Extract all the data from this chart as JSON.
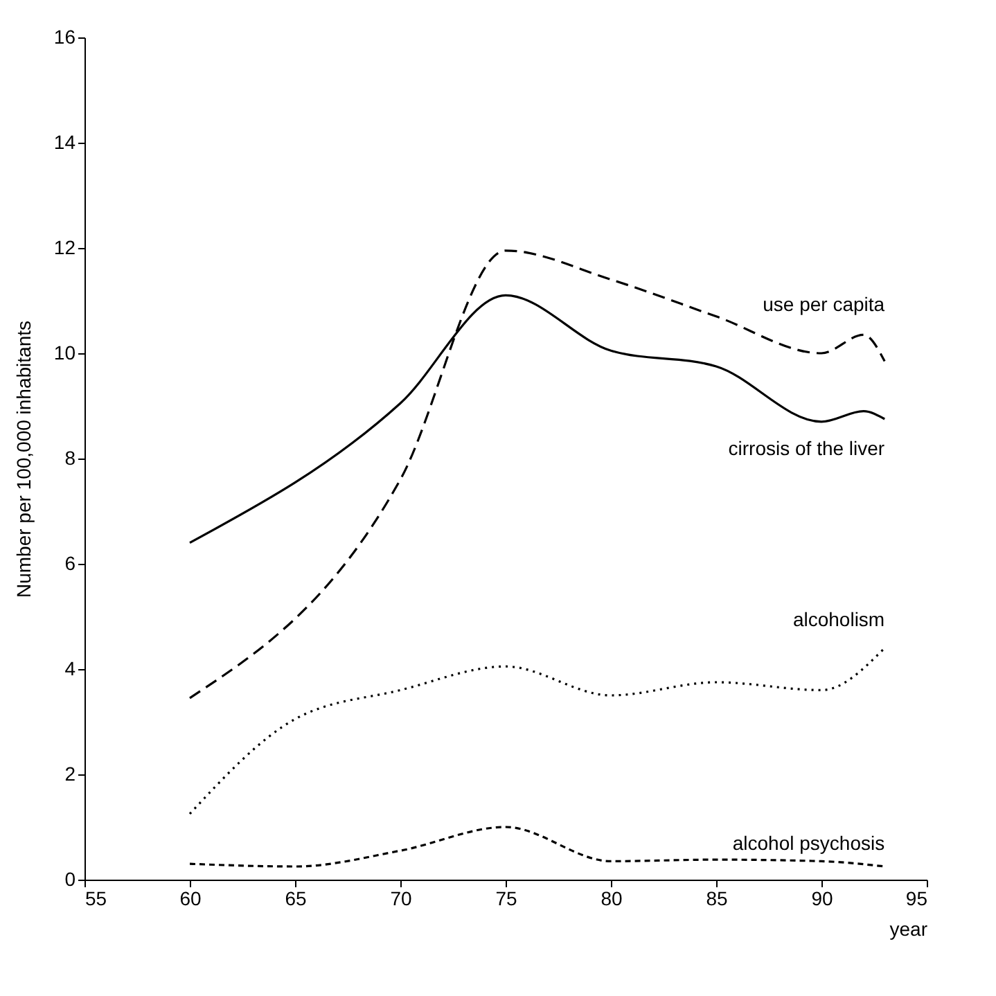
{
  "chart_data": {
    "type": "line",
    "xlabel": "year",
    "ylabel": "Number per 100,000 inhabitants",
    "xlim": [
      55,
      95
    ],
    "xticks": [
      55,
      60,
      65,
      70,
      75,
      80,
      85,
      90,
      95
    ],
    "ylim": [
      0,
      16
    ],
    "yticks": [
      0,
      2,
      4,
      6,
      8,
      10,
      12,
      14,
      16
    ],
    "series": [
      {
        "name": "use per capita",
        "color": "#000000",
        "line_style": "dashed",
        "x": [
          60,
          70,
          75,
          80,
          85,
          90,
          92,
          93
        ],
        "values": [
          3.45,
          7.6,
          11.95,
          11.4,
          10.7,
          10.0,
          10.35,
          9.85
        ]
      },
      {
        "name": "cirrosis of the liver",
        "color": "#000000",
        "line_style": "solid",
        "x": [
          60,
          70,
          75,
          80,
          85,
          90,
          92,
          93
        ],
        "values": [
          6.4,
          9.05,
          11.1,
          10.05,
          9.75,
          8.7,
          8.9,
          8.75
        ]
      },
      {
        "name": "alcoholism",
        "color": "#000000",
        "line_style": "dotted",
        "x": [
          60,
          65,
          70,
          75,
          80,
          85,
          90,
          93
        ],
        "values": [
          1.25,
          3.05,
          3.6,
          4.05,
          3.5,
          3.75,
          3.6,
          4.4
        ]
      },
      {
        "name": "alcohol psychosis",
        "color": "#000000",
        "line_style": "dashed",
        "x": [
          60,
          65,
          70,
          75,
          80,
          85,
          90,
          93
        ],
        "values": [
          0.3,
          0.25,
          0.55,
          1.0,
          0.35,
          0.38,
          0.35,
          0.25
        ]
      }
    ]
  }
}
